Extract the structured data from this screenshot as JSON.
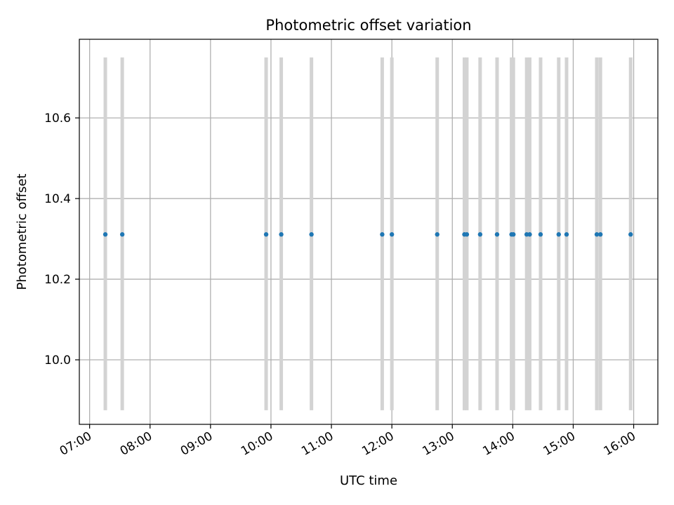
{
  "chart_data": {
    "type": "scatter",
    "title": "Photometric offset variation",
    "xlabel": "UTC time",
    "ylabel": "Photometric offset",
    "x_tick_labels": [
      "07:00",
      "08:00",
      "09:00",
      "10:00",
      "11:00",
      "12:00",
      "13:00",
      "14:00",
      "15:00",
      "16:00"
    ],
    "x_ticks_hours": [
      7,
      8,
      9,
      10,
      11,
      12,
      13,
      14,
      15,
      16
    ],
    "y_tick_labels": [
      "10.0",
      "10.2",
      "10.4",
      "10.6"
    ],
    "y_ticks": [
      10.0,
      10.2,
      10.4,
      10.6
    ],
    "xlim_hours": [
      6.83,
      16.4
    ],
    "ylim": [
      9.84,
      10.795
    ],
    "grid": true,
    "points_x_hours": [
      7.26,
      7.54,
      9.92,
      10.17,
      10.67,
      11.84,
      12.0,
      12.75,
      13.2,
      13.24,
      13.46,
      13.74,
      13.98,
      14.01,
      14.23,
      14.28,
      14.46,
      14.76,
      14.89,
      15.39,
      15.45,
      15.95
    ],
    "points_y": [
      10.311,
      10.311,
      10.311,
      10.311,
      10.311,
      10.311,
      10.311,
      10.311,
      10.311,
      10.311,
      10.311,
      10.311,
      10.311,
      10.311,
      10.311,
      10.311,
      10.311,
      10.311,
      10.311,
      10.311,
      10.311,
      10.311
    ],
    "error_low": 9.875,
    "error_high": 10.75,
    "point_color": "#1f77b4",
    "error_color": "#d3d3d3",
    "grid_color": "#b0b0b0"
  }
}
